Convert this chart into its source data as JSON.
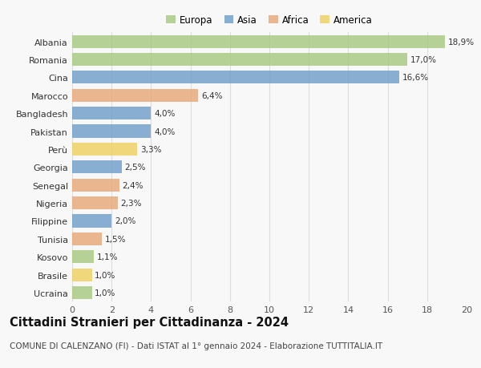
{
  "categories": [
    "Albania",
    "Romania",
    "Cina",
    "Marocco",
    "Bangladesh",
    "Pakistan",
    "Perù",
    "Georgia",
    "Senegal",
    "Nigeria",
    "Filippine",
    "Tunisia",
    "Kosovo",
    "Brasile",
    "Ucraina"
  ],
  "values": [
    18.9,
    17.0,
    16.6,
    6.4,
    4.0,
    4.0,
    3.3,
    2.5,
    2.4,
    2.3,
    2.0,
    1.5,
    1.1,
    1.0,
    1.0
  ],
  "labels": [
    "18,9%",
    "17,0%",
    "16,6%",
    "6,4%",
    "4,0%",
    "4,0%",
    "3,3%",
    "2,5%",
    "2,4%",
    "2,3%",
    "2,0%",
    "1,5%",
    "1,1%",
    "1,0%",
    "1,0%"
  ],
  "continents": [
    "Europa",
    "Europa",
    "Asia",
    "Africa",
    "Asia",
    "Asia",
    "America",
    "Asia",
    "Africa",
    "Africa",
    "Asia",
    "Africa",
    "Europa",
    "America",
    "Europa"
  ],
  "colors": {
    "Europa": "#a8c97f",
    "Asia": "#6f9ec9",
    "Africa": "#e8a878",
    "America": "#f0d060"
  },
  "legend_order": [
    "Europa",
    "Asia",
    "Africa",
    "America"
  ],
  "title": "Cittadini Stranieri per Cittadinanza - 2024",
  "subtitle": "COMUNE DI CALENZANO (FI) - Dati ISTAT al 1° gennaio 2024 - Elaborazione TUTTITALIA.IT",
  "xlim": [
    0,
    20
  ],
  "xticks": [
    0,
    2,
    4,
    6,
    8,
    10,
    12,
    14,
    16,
    18,
    20
  ],
  "background_color": "#f8f8f8",
  "grid_color": "#dddddd",
  "bar_height": 0.72,
  "title_fontsize": 10.5,
  "subtitle_fontsize": 7.5,
  "label_fontsize": 7.5,
  "tick_fontsize": 8,
  "legend_fontsize": 8.5
}
